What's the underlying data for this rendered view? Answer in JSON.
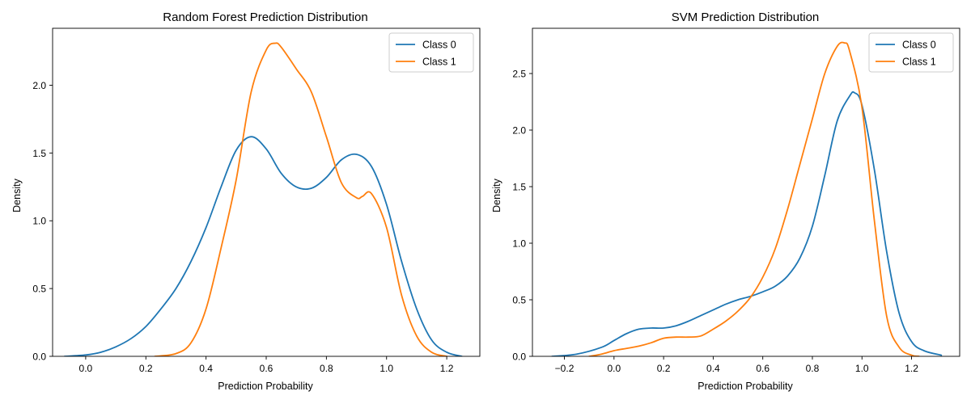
{
  "colors": {
    "class0": "#1f77b4",
    "class1": "#ff7f0e"
  },
  "chart_data": [
    {
      "type": "line",
      "title": "Random Forest Prediction Distribution",
      "xlabel": "Prediction Probability",
      "ylabel": "Density",
      "xlim": [
        -0.11,
        1.31
      ],
      "ylim": [
        0,
        2.42
      ],
      "xticks": [
        0.0,
        0.2,
        0.4,
        0.6,
        0.8,
        1.0,
        1.2
      ],
      "xtick_labels": [
        "0.0",
        "0.2",
        "0.4",
        "0.6",
        "0.8",
        "1.0",
        "1.2"
      ],
      "yticks": [
        0.0,
        0.5,
        1.0,
        1.5,
        2.0
      ],
      "ytick_labels": [
        "0.0",
        "0.5",
        "1.0",
        "1.5",
        "2.0"
      ],
      "legend_position": "top-right",
      "grid": false,
      "series": [
        {
          "name": "Class 0",
          "color": "#1f77b4",
          "x": [
            -0.07,
            0.0,
            0.05,
            0.1,
            0.15,
            0.2,
            0.25,
            0.3,
            0.35,
            0.4,
            0.45,
            0.5,
            0.55,
            0.6,
            0.65,
            0.7,
            0.75,
            0.8,
            0.85,
            0.9,
            0.95,
            1.0,
            1.05,
            1.1,
            1.15,
            1.2,
            1.25
          ],
          "y": [
            0.0,
            0.01,
            0.03,
            0.07,
            0.13,
            0.22,
            0.35,
            0.5,
            0.7,
            0.95,
            1.25,
            1.52,
            1.62,
            1.53,
            1.35,
            1.25,
            1.24,
            1.32,
            1.45,
            1.49,
            1.4,
            1.12,
            0.7,
            0.35,
            0.12,
            0.03,
            0.0
          ]
        },
        {
          "name": "Class 1",
          "color": "#ff7f0e",
          "x": [
            0.23,
            0.3,
            0.35,
            0.4,
            0.45,
            0.5,
            0.55,
            0.6,
            0.63,
            0.65,
            0.7,
            0.75,
            0.8,
            0.85,
            0.9,
            0.92,
            0.95,
            1.0,
            1.05,
            1.1,
            1.15,
            1.2
          ],
          "y": [
            0.0,
            0.02,
            0.1,
            0.35,
            0.8,
            1.3,
            1.95,
            2.26,
            2.31,
            2.28,
            2.12,
            1.95,
            1.62,
            1.28,
            1.17,
            1.18,
            1.2,
            0.95,
            0.45,
            0.15,
            0.03,
            0.0
          ]
        }
      ]
    },
    {
      "type": "line",
      "title": "SVM Prediction Distribution",
      "xlabel": "Prediction Probability",
      "ylabel": "Density",
      "xlim": [
        -0.329,
        1.394
      ],
      "ylim": [
        0,
        2.9
      ],
      "xticks": [
        -0.2,
        0.0,
        0.2,
        0.4,
        0.6,
        0.8,
        1.0,
        1.2
      ],
      "xtick_labels": [
        "−0.2",
        "0.0",
        "0.2",
        "0.4",
        "0.6",
        "0.8",
        "1.0",
        "1.2"
      ],
      "yticks": [
        0.0,
        0.5,
        1.0,
        1.5,
        2.0,
        2.5
      ],
      "ytick_labels": [
        "0.0",
        "0.5",
        "1.0",
        "1.5",
        "2.0",
        "2.5"
      ],
      "legend_position": "top-right",
      "grid": false,
      "series": [
        {
          "name": "Class 0",
          "color": "#1f77b4",
          "x": [
            -0.25,
            -0.15,
            -0.05,
            0.0,
            0.05,
            0.1,
            0.15,
            0.2,
            0.25,
            0.3,
            0.35,
            0.4,
            0.45,
            0.5,
            0.55,
            0.6,
            0.65,
            0.7,
            0.75,
            0.8,
            0.85,
            0.9,
            0.95,
            0.97,
            1.0,
            1.05,
            1.1,
            1.15,
            1.2,
            1.25,
            1.32
          ],
          "y": [
            0.0,
            0.02,
            0.08,
            0.14,
            0.2,
            0.24,
            0.25,
            0.25,
            0.27,
            0.31,
            0.36,
            0.41,
            0.46,
            0.5,
            0.53,
            0.57,
            0.62,
            0.71,
            0.87,
            1.15,
            1.6,
            2.08,
            2.3,
            2.33,
            2.22,
            1.65,
            0.92,
            0.38,
            0.13,
            0.05,
            0.01
          ]
        },
        {
          "name": "Class 1",
          "color": "#ff7f0e",
          "x": [
            -0.1,
            -0.05,
            0.0,
            0.05,
            0.1,
            0.15,
            0.2,
            0.25,
            0.3,
            0.35,
            0.4,
            0.45,
            0.5,
            0.55,
            0.6,
            0.65,
            0.7,
            0.75,
            0.8,
            0.85,
            0.9,
            0.93,
            0.95,
            1.0,
            1.05,
            1.1,
            1.15,
            1.2,
            1.23
          ],
          "y": [
            0.0,
            0.02,
            0.05,
            0.07,
            0.09,
            0.12,
            0.16,
            0.17,
            0.17,
            0.18,
            0.24,
            0.31,
            0.4,
            0.52,
            0.7,
            0.95,
            1.3,
            1.7,
            2.1,
            2.5,
            2.74,
            2.77,
            2.7,
            2.2,
            1.2,
            0.35,
            0.08,
            0.01,
            0.0
          ]
        }
      ]
    }
  ]
}
